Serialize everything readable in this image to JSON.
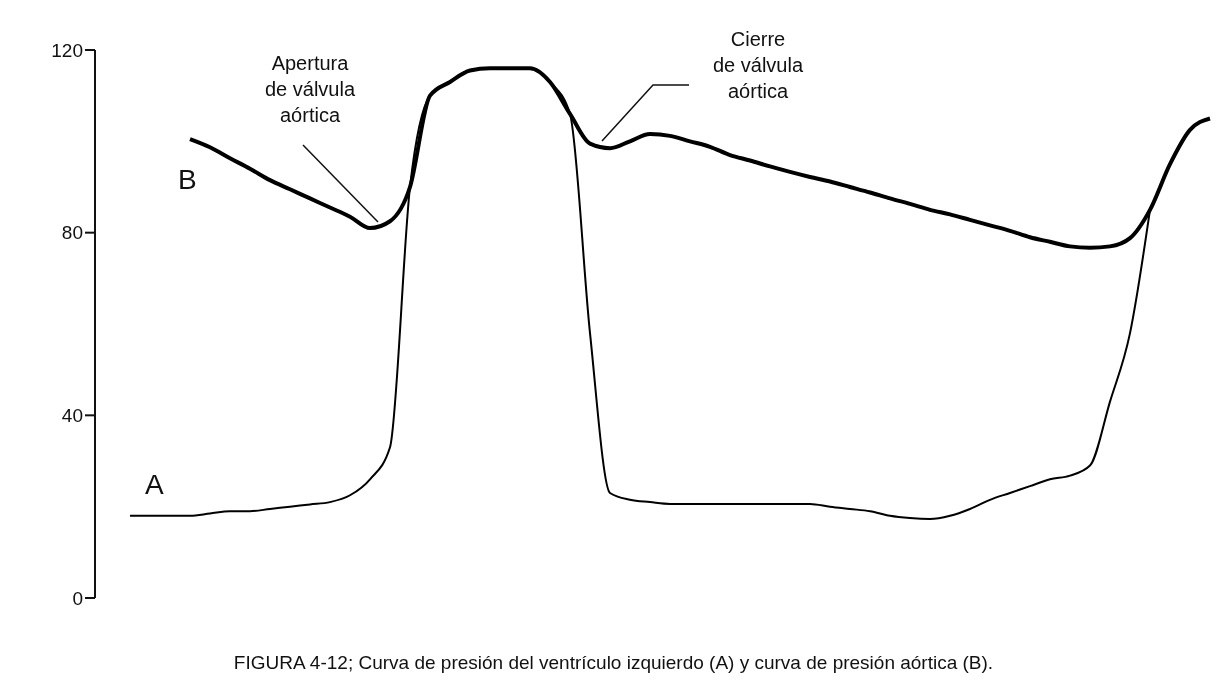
{
  "chart_data": {
    "type": "line",
    "categories": [
      null,
      null,
      null,
      null,
      null,
      null,
      null,
      null,
      null,
      null,
      null,
      null,
      null,
      null,
      null,
      null,
      null,
      null,
      null,
      null,
      null,
      null,
      null,
      null,
      null,
      null,
      null,
      null,
      null,
      null,
      null,
      null,
      null,
      null,
      null,
      null,
      null,
      null,
      null,
      null,
      null,
      null,
      null,
      null,
      null,
      null,
      null,
      null,
      null,
      null,
      null,
      null,
      null,
      null,
      null
    ],
    "series": [
      {
        "name": "A",
        "color": "#000000",
        "values": [
          18,
          18,
          18,
          18,
          18.5,
          19,
          19,
          19.5,
          20,
          20.5,
          21,
          22.5,
          26,
          33,
          90,
          110,
          113,
          115.5,
          116,
          116,
          116,
          113,
          106,
          58,
          23,
          21.5,
          21,
          20.6,
          20.6,
          20.6,
          20.6,
          20.6,
          20.6,
          20.6,
          20.6,
          20,
          19.5,
          19,
          18,
          17.5,
          17.3,
          18,
          19.5,
          21.5,
          23,
          24.5,
          26,
          26.8,
          29,
          43,
          58,
          85,
          null,
          null,
          null
        ]
      },
      {
        "name": "B",
        "color": "#000000",
        "values": [
          null,
          null,
          null,
          100.5,
          98.7,
          96.3,
          94,
          91.5,
          89.5,
          87.5,
          85.5,
          83.5,
          81,
          82.5,
          90,
          110,
          113,
          115.5,
          116,
          116,
          116,
          113,
          106,
          99.5,
          98.5,
          100,
          101.6,
          101.2,
          100,
          98.8,
          97,
          95.8,
          94.5,
          93.3,
          92.2,
          91.2,
          90,
          88.8,
          87.5,
          86.3,
          85,
          84,
          82.8,
          81.6,
          80.4,
          79,
          78,
          77,
          76.7,
          77,
          78.8,
          85,
          95,
          102.5,
          105
        ]
      }
    ],
    "ylim": [
      0,
      120
    ],
    "yticks": [
      0,
      40,
      80,
      120
    ],
    "tick_labels": "y",
    "marker": "none",
    "line_style": "solid",
    "annotations": [
      "Apertura\nde válvula\naórtica",
      "Cierre\nde válvula\naórtica",
      "FIGURA 4-12; Curva de presión del ventrículo izquierdo (A) y curva de presión aórtica (B)."
    ]
  }
}
